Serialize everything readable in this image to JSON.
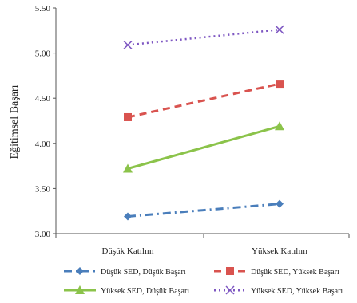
{
  "chart_data": {
    "type": "line",
    "ylabel": "Eğitimsel Başarı",
    "categories": [
      "Düşük Katılım",
      "Yüksek Katılım"
    ],
    "ylim": [
      3.0,
      5.5
    ],
    "yticks": [
      "3.00",
      "3.50",
      "4.00",
      "4.50",
      "5.00",
      "5.50"
    ],
    "grid": false,
    "legend_position": "bottom",
    "series": [
      {
        "name": "Düşük SED, Düşük Başarı",
        "values": [
          3.19,
          3.33
        ],
        "color": "#4a7ebb",
        "dash": "dash-dot",
        "marker": "diamond"
      },
      {
        "name": "Düşük SED, Yüksek Başarı",
        "values": [
          4.29,
          4.66
        ],
        "color": "#d9534f",
        "dash": "dashed",
        "marker": "square"
      },
      {
        "name": "Yüksek SED, Düşük Başarı",
        "values": [
          3.72,
          4.19
        ],
        "color": "#8bc34a",
        "dash": "solid",
        "marker": "triangle"
      },
      {
        "name": "Yüksek SED, Yüksek Başarı",
        "values": [
          5.09,
          5.26
        ],
        "color": "#7e57c2",
        "dash": "dotted",
        "marker": "x"
      }
    ]
  }
}
